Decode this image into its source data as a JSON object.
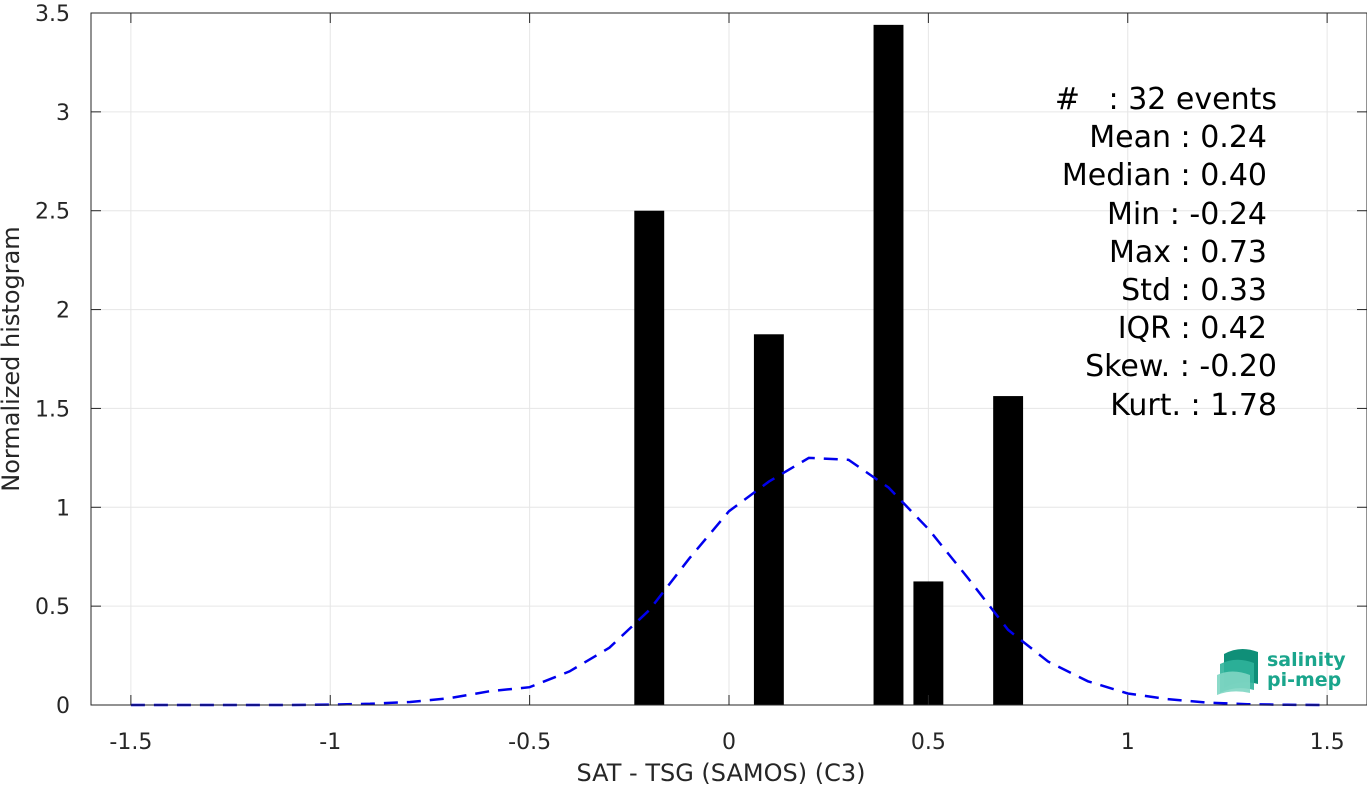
{
  "chart_data": {
    "type": "bar",
    "xlabel": "SAT - TSG (SAMOS) (C3)",
    "ylabel": "Normalized histogram",
    "xlim": [
      -1.6,
      1.6
    ],
    "ylim": [
      0,
      3.5
    ],
    "grid": true,
    "x_ticks": [
      "-1.5",
      "-1",
      "-0.5",
      "0",
      "0.5",
      "1",
      "1.5"
    ],
    "x_tick_values": [
      -1.5,
      -1,
      -0.5,
      0,
      0.5,
      1,
      1.5
    ],
    "y_ticks": [
      "0",
      "0.5",
      "1",
      "1.5",
      "2",
      "2.5",
      "3",
      "3.5"
    ],
    "y_tick_values": [
      0,
      0.5,
      1,
      1.5,
      2,
      2.5,
      3,
      3.5
    ],
    "bars": {
      "bin_width": 0.075,
      "centers": [
        -0.2,
        0.1,
        0.4,
        0.5,
        0.7
      ],
      "values": [
        2.5,
        1.875,
        3.44,
        0.625,
        1.5625
      ],
      "color": "#000000"
    },
    "fit_curve": {
      "style": "dashed",
      "color": "#0000ee",
      "x": [
        -1.5,
        -1.4,
        -1.3,
        -1.2,
        -1.1,
        -1.0,
        -0.9,
        -0.8,
        -0.7,
        -0.6,
        -0.5,
        -0.4,
        -0.3,
        -0.2,
        -0.1,
        0.0,
        0.1,
        0.2,
        0.3,
        0.4,
        0.5,
        0.6,
        0.7,
        0.8,
        0.9,
        1.0,
        1.1,
        1.2,
        1.3,
        1.4,
        1.5
      ],
      "y": [
        0.0,
        0.0,
        0.0,
        0.0,
        0.0,
        0.002,
        0.006,
        0.015,
        0.035,
        0.07,
        0.09,
        0.17,
        0.29,
        0.48,
        0.74,
        0.98,
        1.13,
        1.25,
        1.24,
        1.1,
        0.89,
        0.64,
        0.38,
        0.22,
        0.12,
        0.058,
        0.03,
        0.012,
        0.004,
        0.001,
        0.0
      ]
    },
    "annotation": [
      "#   : 32 events",
      "Mean : 0.24",
      "Median : 0.40",
      "Min : -0.24",
      "Max : 0.73",
      "Std : 0.33",
      "IQR : 0.42",
      "Skew. : -0.20",
      "Kurt. : 1.78"
    ]
  },
  "logo": {
    "line1": "salinity",
    "line2": "pi-mep",
    "color": "#1aa58c"
  }
}
